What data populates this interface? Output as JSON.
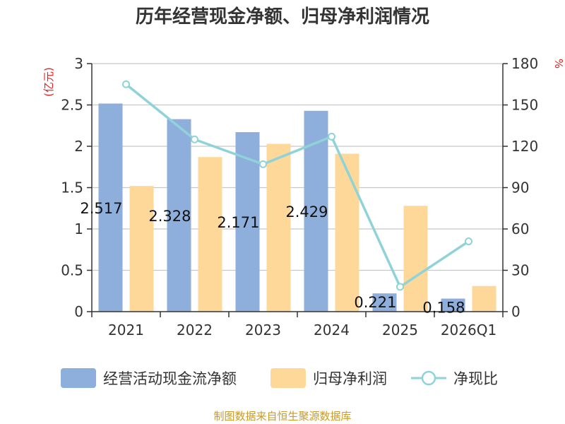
{
  "chart_data": {
    "type": "bar",
    "title": "历年经营现金净额、归母净利润情况",
    "categories": [
      "2021",
      "2022",
      "2023",
      "2024",
      "2025",
      "2026Q1"
    ],
    "left_axis": {
      "unit": "(亿元)",
      "ylim": [
        0,
        3
      ],
      "ticks": [
        "0",
        "0.5",
        "1",
        "1.5",
        "2",
        "2.5",
        "3"
      ]
    },
    "right_axis": {
      "unit": "%",
      "ylim": [
        0,
        180
      ],
      "ticks": [
        "0",
        "30",
        "60",
        "90",
        "120",
        "150",
        "180"
      ]
    },
    "series": [
      {
        "name": "经营活动现金流净额",
        "type": "bar",
        "axis": "left",
        "color": "#8eaedc",
        "values": [
          2.517,
          2.328,
          2.171,
          2.429,
          0.221,
          0.158
        ],
        "labels": [
          "2.517",
          "2.328",
          "2.171",
          "2.429",
          "0.221",
          "0.158"
        ]
      },
      {
        "name": "归母净利润",
        "type": "bar",
        "axis": "left",
        "color": "#fdd898",
        "values": [
          1.52,
          1.87,
          2.03,
          1.91,
          1.28,
          0.31
        ]
      },
      {
        "name": "净现比",
        "type": "line",
        "axis": "right",
        "color": "#8fd3d9",
        "values": [
          165,
          125,
          107,
          127,
          18,
          51
        ]
      }
    ],
    "grid": true,
    "legend_position": "bottom"
  },
  "source": "制图数据来自恒生聚源数据库"
}
